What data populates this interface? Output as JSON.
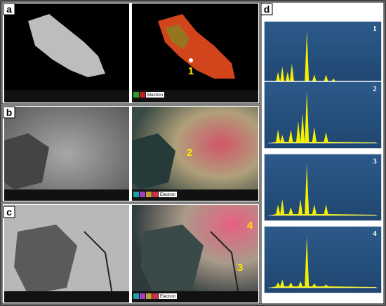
{
  "panels": [
    {
      "label": "a",
      "markers": [
        "1"
      ],
      "legend": "Electron"
    },
    {
      "label": "b",
      "markers": [
        "2"
      ],
      "legend": "Electron"
    },
    {
      "label": "c",
      "markers": [
        "4",
        "3"
      ],
      "legend": "Electron"
    },
    {
      "label": "d",
      "spectra": [
        "1",
        "2",
        "3",
        "4"
      ]
    }
  ]
}
